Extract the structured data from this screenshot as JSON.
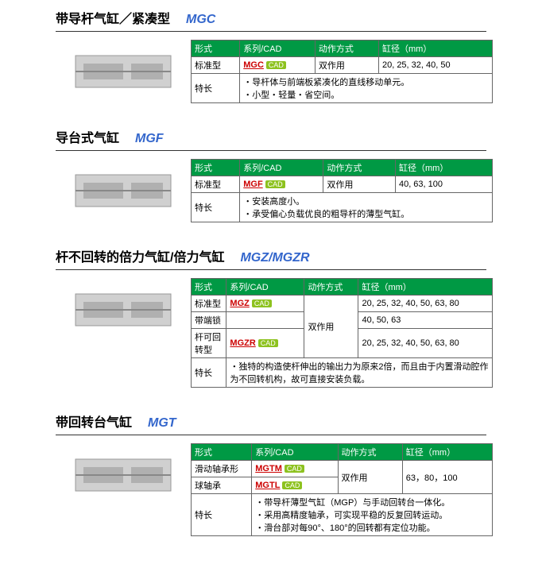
{
  "sections": [
    {
      "title": "带导杆气缸／紧凑型",
      "code": "MGC",
      "headers": [
        "形式",
        "系列/CAD",
        "动作方式",
        "缸径（mm）"
      ],
      "rows": [
        {
          "form": "标准型",
          "series": "MGC",
          "cad": true,
          "action": "双作用",
          "bore": "20, 25, 32, 40, 50"
        }
      ],
      "feature_label": "特长",
      "features": [
        "导杆体与前端板紧凑化的直线移动单元。",
        "小型・轻量・省空间。"
      ]
    },
    {
      "title": "导台式气缸",
      "code": "MGF",
      "headers": [
        "形式",
        "系列/CAD",
        "动作方式",
        "缸径（mm）"
      ],
      "rows": [
        {
          "form": "标准型",
          "series": "MGF",
          "cad": true,
          "action": "双作用",
          "bore": "40, 63, 100"
        }
      ],
      "feature_label": "特长",
      "features": [
        "安装高度小。",
        "承受偏心负载优良的粗导杆的薄型气缸。"
      ]
    },
    {
      "title": "杆不回转的倍力气缸/倍力气缸",
      "code": "MGZ/MGZR",
      "headers": [
        "形式",
        "系列/CAD",
        "动作方式",
        "缸径（mm）"
      ],
      "rows": [
        {
          "form": "标准型",
          "series": "MGZ",
          "cad": true,
          "action": "双作用",
          "bore": "20, 25, 32, 40, 50, 63, 80",
          "action_rowspan": 3
        },
        {
          "form": "带端锁",
          "series": "",
          "cad": false,
          "bore": "40, 50, 63"
        },
        {
          "form": "杆可回转型",
          "series": "MGZR",
          "cad": true,
          "bore": "20, 25, 32, 40, 50, 63, 80"
        }
      ],
      "feature_label": "特长",
      "features": [
        "独特的构造使杆伸出的输出力为原来2倍，而且由于内置滑动腔作为不回转机构，故可直接安装负载。"
      ]
    },
    {
      "title": "带回转台气缸",
      "code": "MGT",
      "headers": [
        "形式",
        "系列/CAD",
        "动作方式",
        "缸径（mm）"
      ],
      "rows": [
        {
          "form": "滑动轴承形",
          "series": "MGTM",
          "cad": true,
          "action": "双作用",
          "bore": "63，80，100",
          "action_rowspan": 2,
          "bore_rowspan": 2
        },
        {
          "form": "球轴承",
          "series": "MGTL",
          "cad": true
        }
      ],
      "feature_label": "特长",
      "features": [
        "带导杆薄型气缸（MGP）与手动回转台一体化。",
        "采用高精度轴承，可实现平稳的反复回转运动。",
        "滑台部对每90°、180°的回转都有定位功能。"
      ]
    }
  ],
  "colors": {
    "header_bg": "#009944",
    "header_text": "#ffffff",
    "code_link": "#cc0000",
    "section_code": "#3366cc",
    "cad_bg": "#8dc21f",
    "border": "#666666"
  }
}
